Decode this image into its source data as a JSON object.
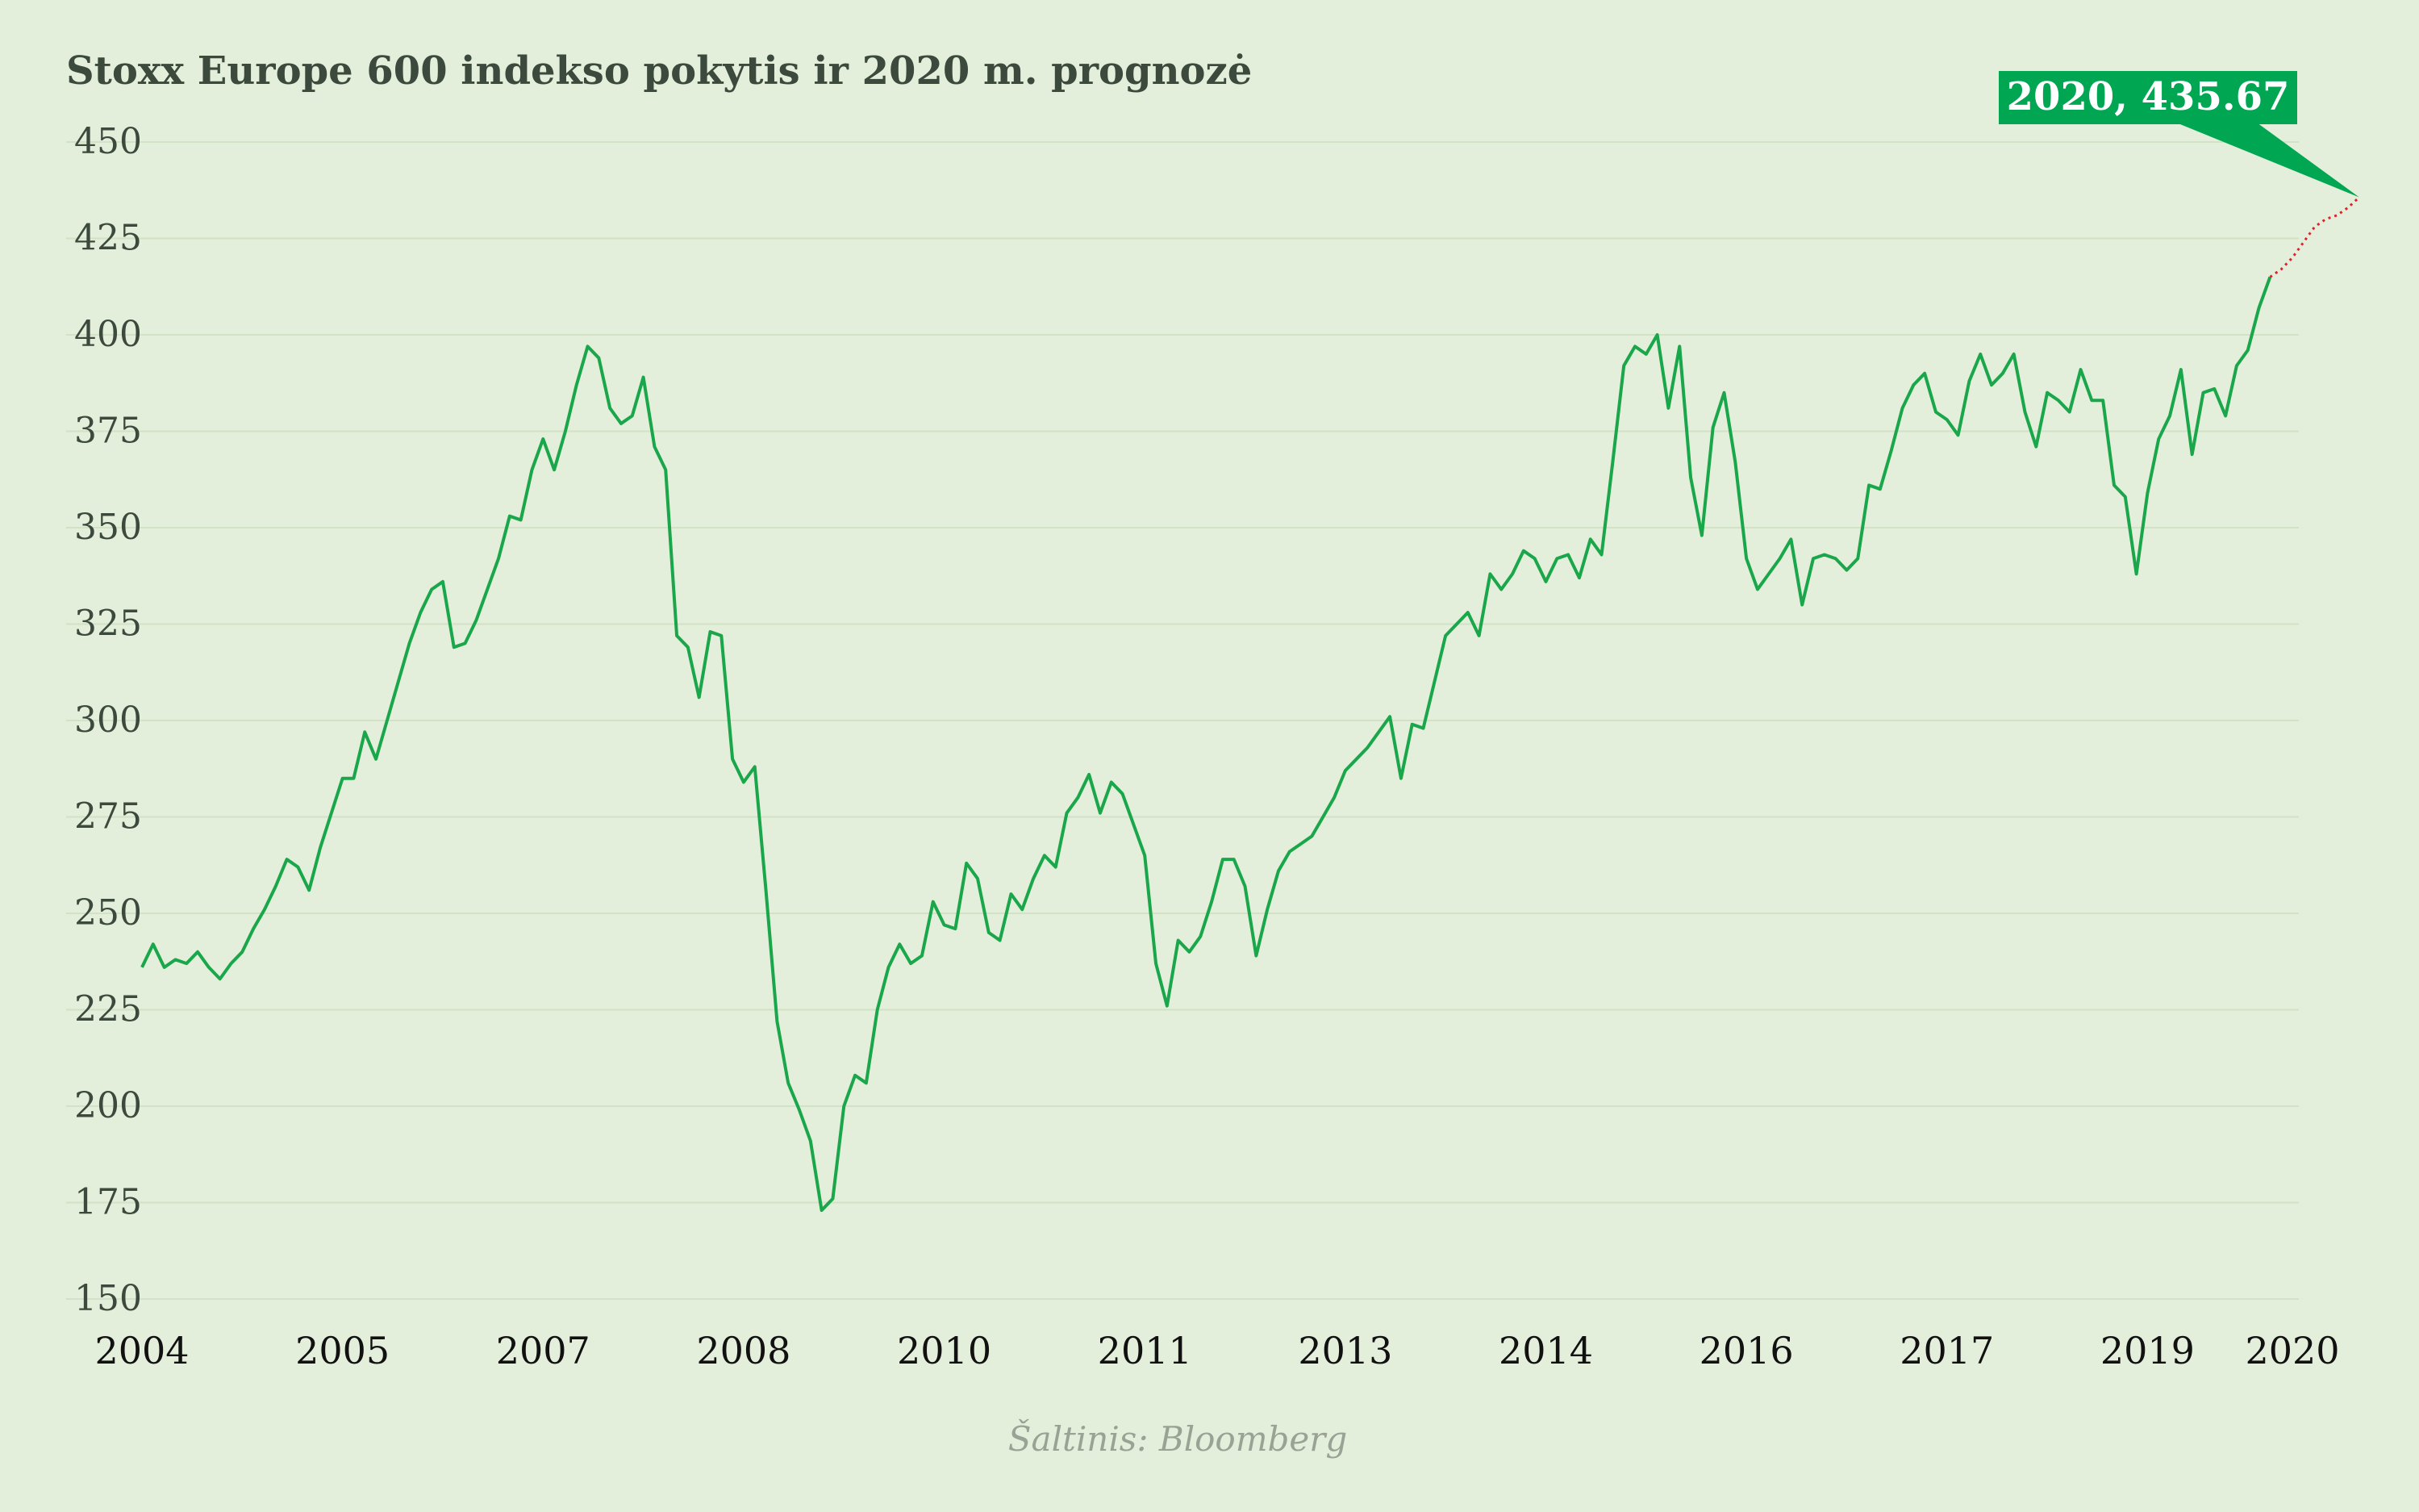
{
  "chart_data": {
    "type": "line",
    "title": "Stoxx Europe 600 indekso pokytis ir 2020 m. prognozė",
    "source": "Šaltinis: Bloomberg",
    "annotation": "2020, 435.67",
    "ylim": [
      150,
      450
    ],
    "yticks": [
      "150",
      "175",
      "200",
      "225",
      "250",
      "275",
      "300",
      "325",
      "350",
      "375",
      "400",
      "425",
      "450"
    ],
    "xlim": [
      0,
      193
    ],
    "xticks": [
      {
        "label": "2004",
        "x": 0
      },
      {
        "label": "2005",
        "x": 18
      },
      {
        "label": "2007",
        "x": 36
      },
      {
        "label": "2008",
        "x": 54
      },
      {
        "label": "2010",
        "x": 72
      },
      {
        "label": "2011",
        "x": 90
      },
      {
        "label": "2013",
        "x": 108
      },
      {
        "label": "2014",
        "x": 126
      },
      {
        "label": "2016",
        "x": 144
      },
      {
        "label": "2017",
        "x": 162
      },
      {
        "label": "2019",
        "x": 180
      },
      {
        "label": "2020",
        "x": 193
      }
    ],
    "grid": true,
    "colors": {
      "line": "#1aa64a",
      "forecast": "#e0212b",
      "callout": "#00a651",
      "background": "#e4efdb"
    },
    "series": [
      {
        "values": [
          236,
          242,
          236,
          238,
          237,
          240,
          236,
          233,
          237,
          240,
          246,
          251,
          257,
          264,
          262,
          256,
          267,
          276,
          285,
          285,
          297,
          290,
          300,
          310,
          320,
          328,
          334,
          336,
          319,
          320,
          326,
          334,
          342,
          353,
          352,
          365,
          373,
          365,
          375,
          387,
          397,
          394,
          381,
          377,
          379,
          389,
          371,
          365,
          322,
          319,
          306,
          323,
          322,
          290,
          284,
          288,
          256,
          222,
          206,
          199,
          191,
          173,
          176,
          200,
          208,
          206,
          225,
          236,
          242,
          237,
          239,
          253,
          247,
          246,
          263,
          259,
          245,
          243,
          255,
          251,
          259,
          265,
          262,
          276,
          280,
          286,
          276,
          284,
          281,
          273,
          265,
          237,
          226,
          243,
          240,
          244,
          253,
          264,
          264,
          257,
          239,
          251,
          261,
          266,
          268,
          270,
          275,
          280,
          287,
          290,
          293,
          297,
          301,
          285,
          299,
          298,
          310,
          322,
          325,
          328,
          322,
          338,
          334,
          338,
          344,
          342,
          336,
          342,
          343,
          337,
          347,
          343,
          367,
          392,
          397,
          395,
          400,
          381,
          397,
          363,
          348,
          376,
          385,
          367,
          342,
          334,
          338,
          342,
          347,
          330,
          342,
          343,
          342,
          339,
          342,
          361,
          360,
          370,
          381,
          387,
          390,
          380,
          378,
          374,
          388,
          395,
          387,
          390,
          395,
          380,
          371,
          385,
          383,
          380,
          391,
          383,
          383,
          361,
          358,
          338,
          359,
          373,
          379,
          391,
          369,
          385,
          386,
          379,
          392,
          396,
          407,
          415
        ]
      },
      {
        "values": [
          415,
          417,
          420,
          424,
          428,
          430,
          431,
          433,
          435.67
        ]
      }
    ]
  }
}
